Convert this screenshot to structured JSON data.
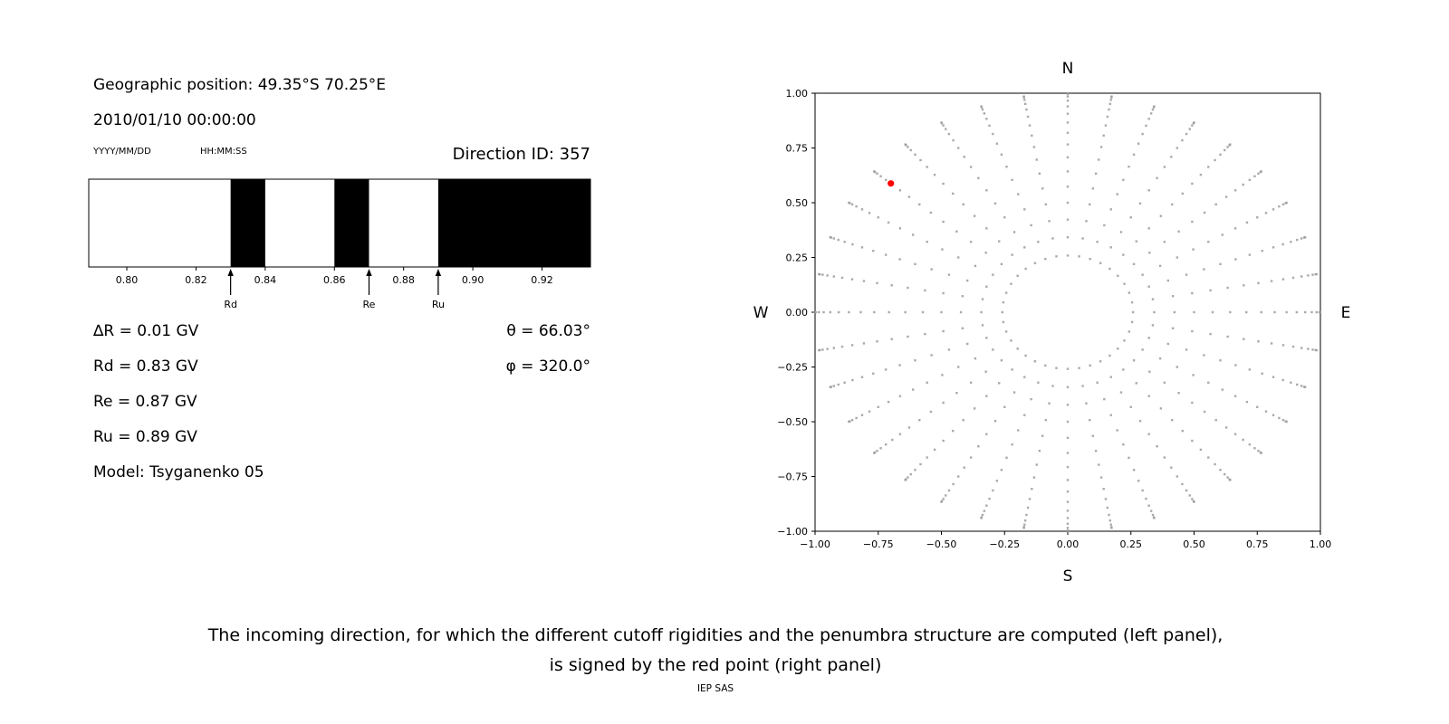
{
  "colors": {
    "background": "#ffffff",
    "text": "#000000",
    "band": "#000000",
    "dots": "#9b9b9b",
    "red_point": "#ff0000"
  },
  "info_panel": {
    "geographic_position": "Geographic position: 49.35°S 70.25°E",
    "datetime": "2010/01/10 00:00:00",
    "date_format_label": "YYYY/MM/DD",
    "time_format_label": "HH:MM:SS",
    "direction_id": "Direction ID: 357",
    "delta_r": "∆R = 0.01 GV",
    "rd": "Rd = 0.83 GV",
    "re": "Re = 0.87 GV",
    "ru": "Ru = 0.89 GV",
    "model": "Model: Tsyganenko 05",
    "theta": "θ = 66.03°",
    "phi": "φ = 320.0°"
  },
  "caption": {
    "line1": "The incoming direction, for which the different cutoff rigidities and the penumbra structure are computed (left panel),",
    "line2": "is signed by the red point (right panel)",
    "credit": "IEP SAS"
  },
  "chart_data": [
    {
      "type": "bar",
      "subtype": "penumbra-bands",
      "description": "Penumbra structure: black bands mark allowed rigidity intervals between the cutoff rigidities Rd, Re, Ru",
      "xlim": [
        0.789,
        0.934
      ],
      "xticks": [
        0.8,
        0.82,
        0.84,
        0.86,
        0.88,
        0.9,
        0.92
      ],
      "band_color": "#000000",
      "bands": [
        [
          0.83,
          0.84
        ],
        [
          0.86,
          0.87
        ],
        [
          0.89,
          0.934
        ]
      ],
      "markers": [
        {
          "label": "Rd",
          "x": 0.83
        },
        {
          "label": "Re",
          "x": 0.87
        },
        {
          "label": "Ru",
          "x": 0.89
        }
      ]
    },
    {
      "type": "scatter",
      "description": "Grid of incoming directions: gray dots on 36 azimuthal spokes (10° step), radius = sin(zenith) for zenith 15°–90° in 5° steps; red point marks the selected incoming direction",
      "xlim": [
        -1.0,
        1.0
      ],
      "ylim": [
        -1.0,
        1.0
      ],
      "xticks": [
        -1.0,
        -0.75,
        -0.5,
        -0.25,
        0.0,
        0.25,
        0.5,
        0.75,
        1.0
      ],
      "yticks": [
        -1.0,
        -0.75,
        -0.5,
        -0.25,
        0.0,
        0.25,
        0.5,
        0.75,
        1.0
      ],
      "compass": {
        "top": "N",
        "bottom": "S",
        "left": "W",
        "right": "E"
      },
      "dots": {
        "azimuth_start_deg": 0,
        "azimuth_step_deg": 10,
        "azimuth_count": 36,
        "zenith_start_deg": 15,
        "zenith_step_deg": 5,
        "zenith_count": 16,
        "radius_rule": "sin(zenith)",
        "color": "#9b9b9b"
      },
      "red_point": {
        "x": -0.7,
        "y": 0.588,
        "color": "#ff0000"
      }
    }
  ]
}
